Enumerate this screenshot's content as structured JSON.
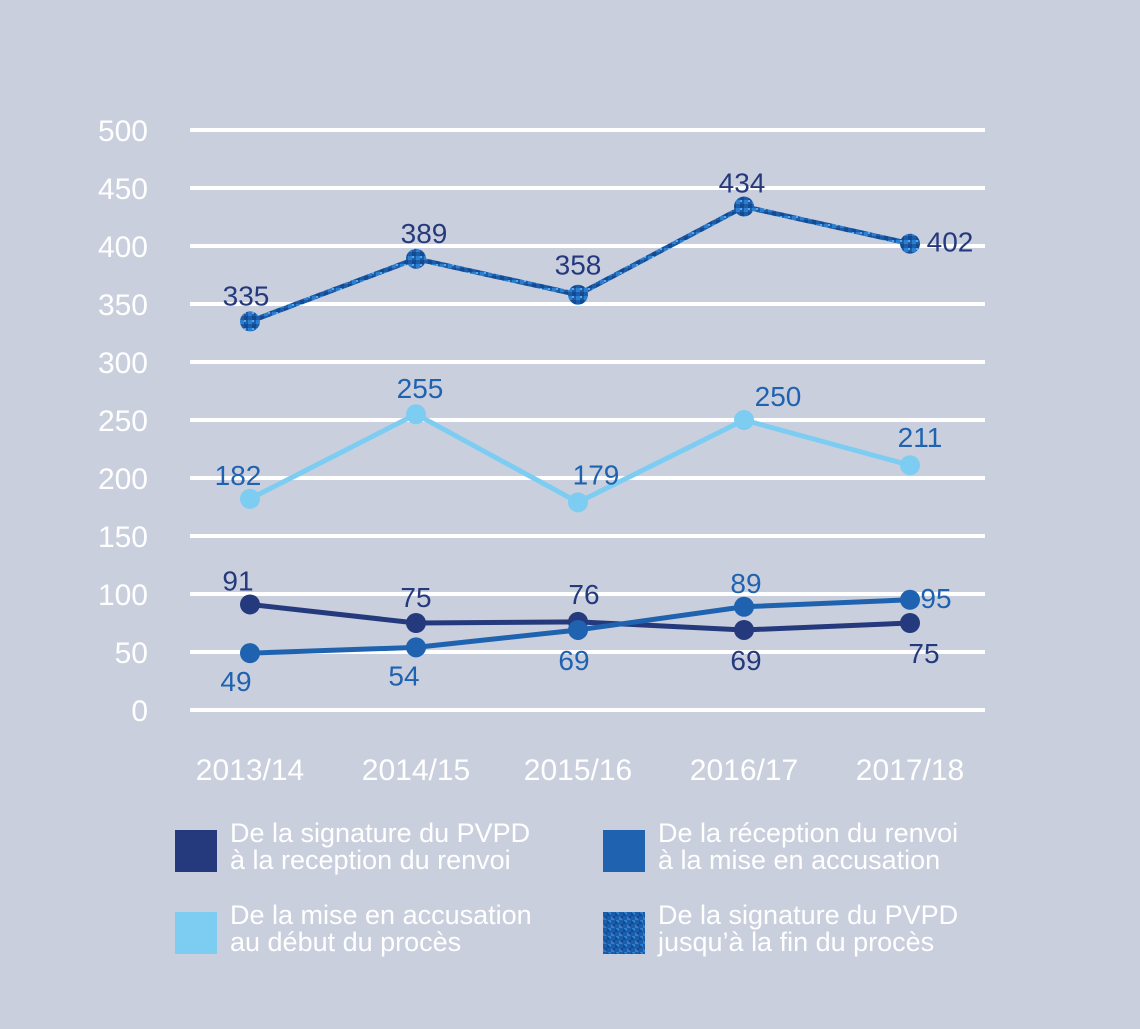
{
  "chart_data": {
    "type": "line",
    "categories": [
      "2013/14",
      "2014/15",
      "2015/16",
      "2016/17",
      "2017/18"
    ],
    "ylim": [
      0,
      500
    ],
    "yticks": [
      0,
      50,
      100,
      150,
      200,
      250,
      300,
      350,
      400,
      450,
      500
    ],
    "grid": true,
    "series": [
      {
        "name": "De la signature du PVPD\nà la reception du renvoi",
        "color": "#253a7c",
        "label_color": "#253a7c",
        "values": [
          91,
          75,
          76,
          69,
          75
        ]
      },
      {
        "name": "De la réception du renvoi\nà la mise en accusation",
        "color": "#1f63b0",
        "label_color": "#1f63b0",
        "values": [
          49,
          54,
          69,
          89,
          95
        ]
      },
      {
        "name": "De la mise en accusation\nau début du procès",
        "color": "#7dcdf3",
        "label_color": "#1f63b0",
        "values": [
          182,
          255,
          179,
          250,
          211
        ]
      },
      {
        "name": "De la signature du PVPD\njusqu’à la fin du procès",
        "color": "#1c5ca8",
        "label_color": "#253a7c",
        "values": [
          335,
          389,
          358,
          434,
          402
        ]
      }
    ]
  }
}
